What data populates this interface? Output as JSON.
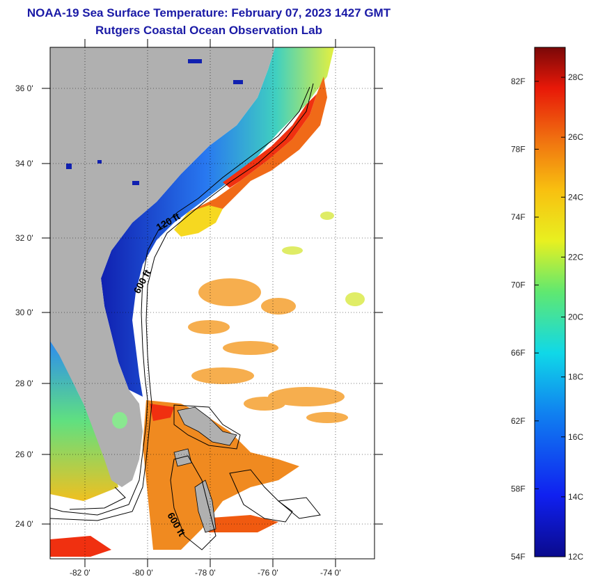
{
  "title": "NOAA-19 Sea Surface Temperature:  February 07, 2023 1427 GMT",
  "subtitle": "Rutgers Coastal Ocean Observation Lab",
  "map": {
    "lat_labels": [
      "36 0'",
      "34 0'",
      "32 0'",
      "30 0'",
      "28 0'",
      "26 0'",
      "24 0'"
    ],
    "lon_labels": [
      "-82 0'",
      "-80 0'",
      "-78 0'",
      "-76 0'",
      "-74 0'"
    ],
    "contour_labels": [
      "120 ft",
      "600 ft",
      "600 ft"
    ],
    "colors": {
      "land": "#b0b0b0",
      "cold": "#1020b0",
      "cool": "#2c8cf0",
      "mild": "#e4f040",
      "warm": "#f5a020",
      "hot": "#f03010"
    }
  },
  "colorbar": {
    "fahrenheit": [
      "82F",
      "78F",
      "74F",
      "70F",
      "66F",
      "62F",
      "58F",
      "54F"
    ],
    "celsius": [
      "28C",
      "26C",
      "24C",
      "22C",
      "20C",
      "18C",
      "16C",
      "14C",
      "12C"
    ],
    "range_f": [
      54,
      84
    ],
    "range_c": [
      12,
      29
    ]
  }
}
